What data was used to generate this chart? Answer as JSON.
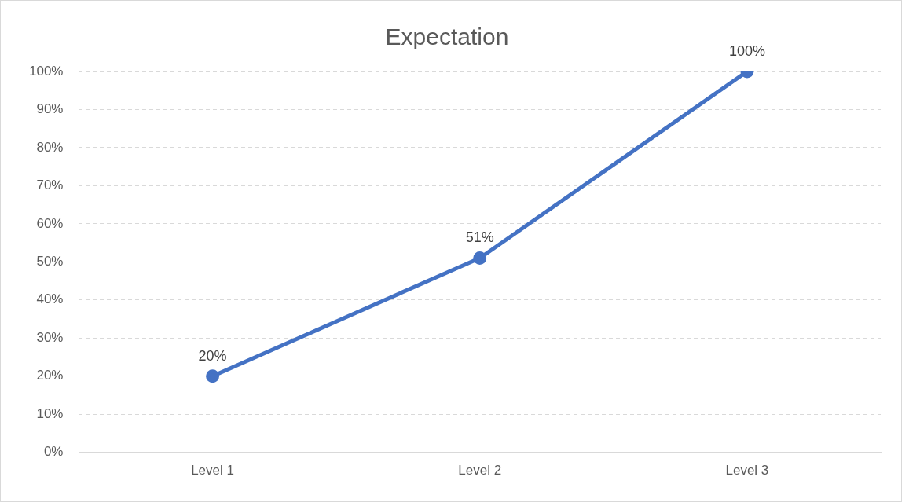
{
  "chart_data": {
    "type": "line",
    "title": "Expectation",
    "categories": [
      "Level 1",
      "Level 2",
      "Level 3"
    ],
    "series": [
      {
        "color": "#4472c4",
        "values": [
          20,
          51,
          100
        ],
        "value_labels": [
          "20%",
          "51%",
          "100%"
        ]
      }
    ],
    "ylim": [
      0,
      100
    ],
    "yticks": [
      {
        "value": 0,
        "label": "0%"
      },
      {
        "value": 10,
        "label": "10%"
      },
      {
        "value": 20,
        "label": "20%"
      },
      {
        "value": 30,
        "label": "30%"
      },
      {
        "value": 40,
        "label": "40%"
      },
      {
        "value": 50,
        "label": "50%"
      },
      {
        "value": 60,
        "label": "60%"
      },
      {
        "value": 70,
        "label": "70%"
      },
      {
        "value": 80,
        "label": "80%"
      },
      {
        "value": 90,
        "label": "90%"
      },
      {
        "value": 100,
        "label": "100%"
      }
    ],
    "grid": "y",
    "legend": false,
    "marker": "circle",
    "line_style": "solid"
  }
}
